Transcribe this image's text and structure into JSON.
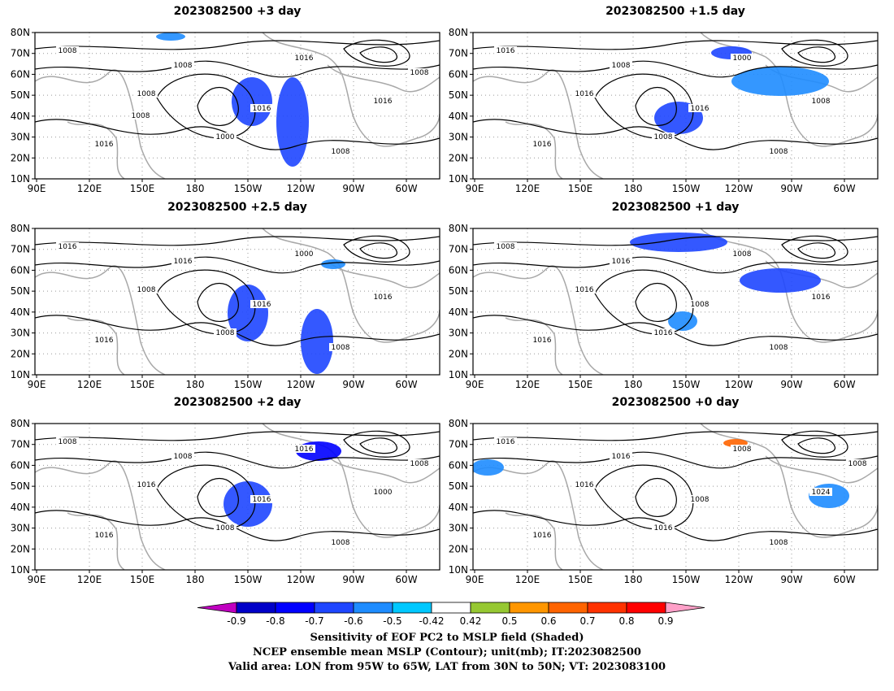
{
  "panels": [
    {
      "id": "p3",
      "title": "2023082500 +3 day",
      "contour_labels": [
        "1008",
        "1008",
        "1000",
        "1016",
        "1016",
        "1016",
        "1008",
        "1016",
        "1008",
        "1008",
        "1008"
      ],
      "shading": [
        [
          "-0.6",
          310,
          125,
          25,
          30
        ],
        [
          "-0.6",
          360,
          150,
          20,
          55
        ],
        [
          "-0.5",
          210,
          45,
          18,
          5
        ]
      ]
    },
    {
      "id": "p15",
      "title": "2023082500 +1.5 day",
      "contour_labels": [
        "1016",
        "1016",
        "1008",
        "1000",
        "1008",
        "1016",
        "1008",
        "1016",
        "1008"
      ],
      "shading": [
        [
          "-0.6",
          835,
          145,
          30,
          20
        ],
        [
          "-0.5",
          960,
          100,
          60,
          18
        ],
        [
          "-0.6",
          900,
          65,
          25,
          8
        ]
      ]
    },
    {
      "id": "p25",
      "title": "2023082500 +2.5 day",
      "contour_labels": [
        "1016",
        "1008",
        "1008",
        "1000",
        "1016",
        "1016",
        "1016",
        "1016",
        "1008"
      ],
      "shading": [
        [
          "-0.6",
          305,
          385,
          25,
          35
        ],
        [
          "-0.6",
          390,
          420,
          20,
          40
        ],
        [
          "-0.5",
          410,
          325,
          15,
          6
        ]
      ]
    },
    {
      "id": "p1",
      "title": "2023082500 +1 day",
      "contour_labels": [
        "1008",
        "1016",
        "1016",
        "1008",
        "1016",
        "1016",
        "1016",
        "1008",
        "1008"
      ],
      "shading": [
        [
          "-0.6",
          835,
          298,
          60,
          12
        ],
        [
          "-0.6",
          960,
          345,
          50,
          15
        ],
        [
          "-0.5",
          840,
          395,
          18,
          12
        ]
      ]
    },
    {
      "id": "p2",
      "title": "2023082500 +2 day",
      "contour_labels": [
        "1008",
        "1016",
        "1008",
        "1016",
        "1000",
        "1016",
        "1008",
        "1016",
        "1008",
        "1008"
      ],
      "shading": [
        [
          "-0.6",
          305,
          620,
          30,
          28
        ],
        [
          "-0.7",
          392,
          555,
          28,
          12
        ]
      ]
    },
    {
      "id": "p0",
      "title": "2023082500 +0 day",
      "contour_labels": [
        "1016",
        "1016",
        "1016",
        "1008",
        "1024",
        "1016",
        "1016",
        "1008",
        "1008",
        "1008"
      ],
      "shading": [
        [
          "-0.5",
          600,
          575,
          20,
          10
        ],
        [
          "-0.5",
          1020,
          610,
          25,
          15
        ],
        [
          "0.6",
          905,
          545,
          15,
          5
        ]
      ]
    }
  ],
  "lat_labels": [
    "80N",
    "70N",
    "60N",
    "50N",
    "40N",
    "30N",
    "20N",
    "10N"
  ],
  "lon_labels": [
    "90E",
    "120E",
    "150E",
    "180",
    "150W",
    "120W",
    "90W",
    "60W"
  ],
  "colorbar": {
    "ticks": [
      "-0.9",
      "-0.8",
      "-0.7",
      "-0.6",
      "-0.5",
      "-0.42",
      "0.42",
      "0.5",
      "0.6",
      "0.7",
      "0.8",
      "0.9"
    ],
    "colors": [
      "#c000c0",
      "#0000c8",
      "#0000ff",
      "#1e46ff",
      "#1e8cff",
      "#00c8ff",
      "#ffffff",
      "#96c832",
      "#ff9600",
      "#ff6400",
      "#ff3200",
      "#ff0000",
      "#ffa0c8"
    ]
  },
  "footer": {
    "line1": "Sensitivity of EOF PC2 to MSLP field (Shaded)",
    "line2": "NCEP ensemble mean MSLP (Contour); unit(mb); IT:2023082500",
    "line3": "Valid area: LON from 95W to 65W, LAT from 30N to 50N; VT: 2023083100"
  }
}
